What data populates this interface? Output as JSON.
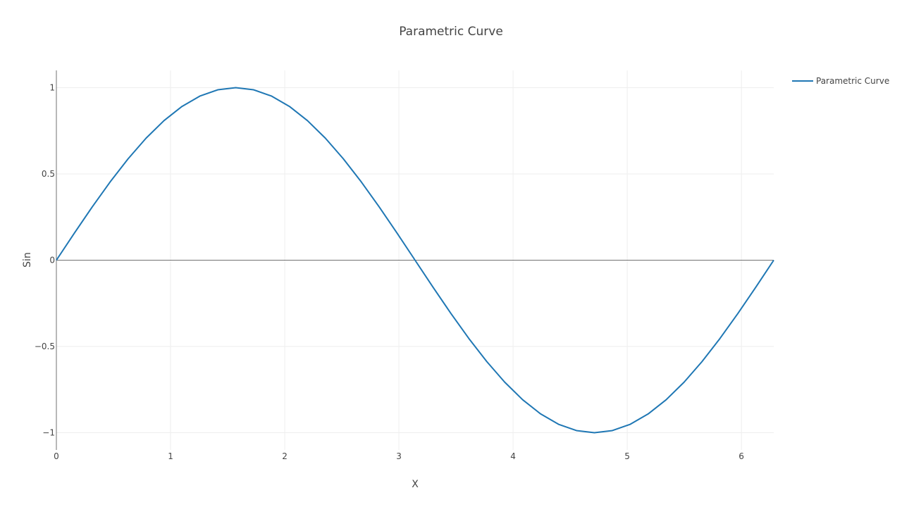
{
  "chart_data": {
    "type": "line",
    "title": "Parametric Curve",
    "xlabel": "X",
    "ylabel": "Sin",
    "xlim": [
      0,
      6.2832
    ],
    "ylim": [
      -1.1,
      1.1
    ],
    "xticks": [
      {
        "value": 0,
        "label": "0"
      },
      {
        "value": 1,
        "label": "1"
      },
      {
        "value": 2,
        "label": "2"
      },
      {
        "value": 3,
        "label": "3"
      },
      {
        "value": 4,
        "label": "4"
      },
      {
        "value": 5,
        "label": "5"
      },
      {
        "value": 6,
        "label": "6"
      }
    ],
    "yticks": [
      {
        "value": 1,
        "label": "1"
      },
      {
        "value": 0.5,
        "label": "0.5"
      },
      {
        "value": 0,
        "label": "0"
      },
      {
        "value": -0.5,
        "label": "−0.5"
      },
      {
        "value": -1,
        "label": "−1"
      }
    ],
    "grid": true,
    "legend_position": "top-right",
    "series": [
      {
        "name": "Parametric Curve",
        "color": "#1f77b4",
        "x": [
          0,
          0.1571,
          0.3142,
          0.4712,
          0.6283,
          0.7854,
          0.9425,
          1.0996,
          1.2566,
          1.4137,
          1.5708,
          1.7279,
          1.885,
          2.042,
          2.1991,
          2.3562,
          2.5133,
          2.6704,
          2.8274,
          2.9845,
          3.1416,
          3.2987,
          3.4558,
          3.6128,
          3.7699,
          3.927,
          4.0841,
          4.2412,
          4.3982,
          4.5553,
          4.7124,
          4.8695,
          5.0265,
          5.1836,
          5.3407,
          5.4978,
          5.6549,
          5.8119,
          5.969,
          6.1261,
          6.2832
        ],
        "y": [
          0,
          0.1564,
          0.309,
          0.454,
          0.5878,
          0.7071,
          0.809,
          0.891,
          0.9511,
          0.9877,
          1,
          0.9877,
          0.9511,
          0.891,
          0.809,
          0.7071,
          0.5878,
          0.454,
          0.309,
          0.1564,
          0,
          -0.1564,
          -0.309,
          -0.454,
          -0.5878,
          -0.7071,
          -0.809,
          -0.891,
          -0.9511,
          -0.9877,
          -1,
          -0.9877,
          -0.9511,
          -0.891,
          -0.809,
          -0.7071,
          -0.5878,
          -0.454,
          -0.309,
          -0.1564,
          0
        ]
      }
    ]
  }
}
